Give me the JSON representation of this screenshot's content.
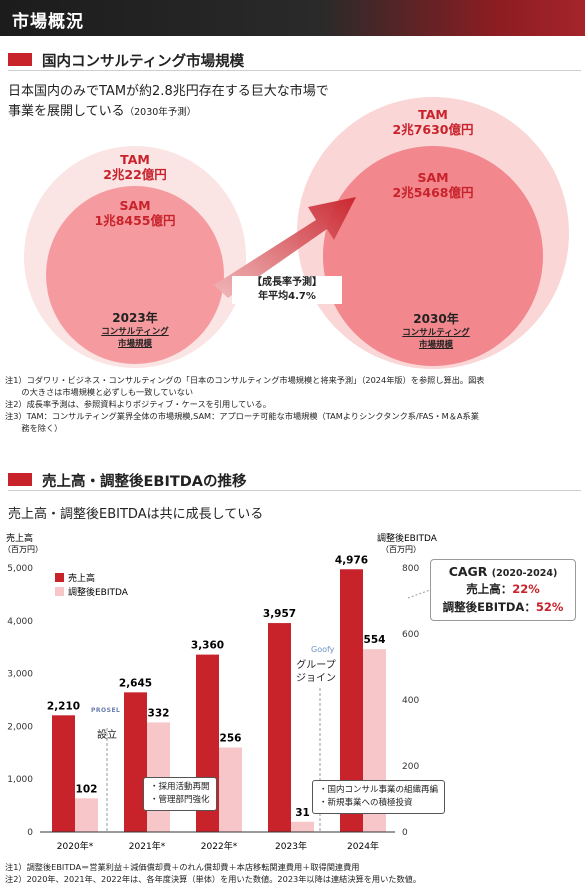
{
  "header": {
    "title": "市場概況"
  },
  "section1": {
    "title": "国内コンサルティング市場規模",
    "lead_line1": "日本国内のみでTAMが約2.8兆円存在する巨大な市場で",
    "lead_line2": "事業を展開している",
    "lead_note": "（2030年予測）",
    "left": {
      "tam_label": "TAM",
      "tam_value": "2兆22億円",
      "sam_label": "SAM",
      "sam_value": "1兆8455億円",
      "year": "2023年",
      "caption1": "コンサルティング",
      "caption2": "市場規模"
    },
    "right": {
      "tam_label": "TAM",
      "tam_value": "2兆7630億円",
      "sam_label": "SAM",
      "sam_value": "2兆5468億円",
      "year": "2030年",
      "caption1": "コンサルティング",
      "caption2": "市場規模"
    },
    "growth_label": "【成長率予測】",
    "growth_value": "年平均4.7%",
    "notes": [
      "注1）コダワリ・ビジネス・コンサルティングの「日本のコンサルティング市場規模と将来予測」（2024年版）を参照し算出。図表",
      "　　の大きさは市場規模と必ずしも一致していない",
      "注2）成長率予測は、参照資料よりポジティブ・ケースを引用している。",
      "注3）TAM：コンサルティング業界全体の市場規模,SAM：アプローチ可能な市場規模（TAMよりシンクタンク系/FAS・M＆A系業",
      "　　務を除く）"
    ]
  },
  "section2": {
    "title": "売上高・調整後EBITDAの推移",
    "lead": "売上高・調整後EBITDAは共に成長している",
    "cagr": {
      "title": "CAGR",
      "period": "(2020-2024)",
      "sales_label": "売上高：",
      "sales_value": "22%",
      "ebitda_label": "調整後EBITDA：",
      "ebitda_value": "52%"
    },
    "ann_prosel_logo": "PROSEL",
    "ann_prosel": "設立",
    "ann_goofy_logo": "Goofy",
    "ann_goofy1": "グループ",
    "ann_goofy2": "ジョイン",
    "callout1": [
      "・採用活動再開",
      "・管理部門強化"
    ],
    "callout2": [
      "・国内コンサル事業の組織再編",
      "・新規事業への積極投資"
    ],
    "notes": [
      "注1）調整後EBITDA＝営業利益＋減価償却費＋のれん償却費＋本店移転関連費用＋取得関連費用",
      "注2）2020年、2021年、2022年は、各年度決算（単体）を用いた数値。2023年以降は連結決算を用いた数値。"
    ]
  },
  "chart_data": {
    "type": "bar",
    "categories": [
      "2020年*",
      "2021年*",
      "2022年*",
      "2023年",
      "2024年"
    ],
    "series": [
      {
        "name": "売上高",
        "axis": "left",
        "color": "#c8222b",
        "values": [
          2210,
          2645,
          3360,
          3957,
          4976
        ]
      },
      {
        "name": "調整後EBITDA",
        "axis": "right",
        "color": "#f7c6c8",
        "values": [
          102,
          332,
          256,
          31,
          554
        ]
      }
    ],
    "ylabel": "売上高",
    "ylabel_unit": "（百万円）",
    "ylim": [
      0,
      5000
    ],
    "yticks": [
      "0",
      "1,000",
      "2,000",
      "3,000",
      "4,000",
      "5,000"
    ],
    "y2label": "調整後EBITDA",
    "y2label_unit": "（百万円）",
    "y2lim": [
      0,
      800
    ],
    "y2ticks": [
      "0",
      "200",
      "400",
      "600",
      "800"
    ],
    "value_labels_sales": [
      "2,210",
      "2,645",
      "3,360",
      "3,957",
      "4,976"
    ],
    "value_labels_ebitda": [
      "102",
      "332",
      "256",
      "31",
      "554"
    ],
    "legend": "top-left",
    "grid": false
  }
}
